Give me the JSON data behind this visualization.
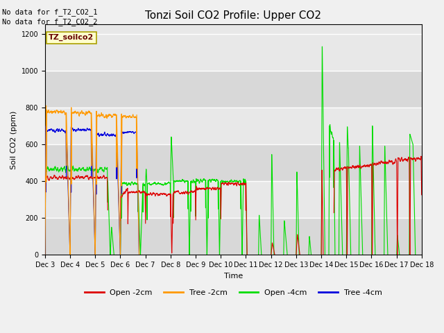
{
  "title": "Tonzi Soil CO2 Profile: Upper CO2",
  "ylabel": "Soil CO2 (ppm)",
  "xlabel": "Time",
  "no_data_text": [
    "No data for f_T2_CO2_1",
    "No data for f_T2_CO2_2"
  ],
  "legend_label": "TZ_soilco2",
  "ylim": [
    0,
    1250
  ],
  "yticks": [
    0,
    200,
    400,
    600,
    800,
    1000,
    1200
  ],
  "x_tick_labels": [
    "Dec 3",
    "Dec 4",
    "Dec 5",
    "Dec 6",
    "Dec 7",
    "Dec 8",
    "Dec 9",
    "Dec 10",
    "Dec 11",
    "Dec 12",
    "Dec 13",
    "Dec 14",
    "Dec 15",
    "Dec 16",
    "Dec 17",
    "Dec 18"
  ],
  "bg_color": "#e8e8e8",
  "colors": {
    "open_2cm": "#dd0000",
    "tree_2cm": "#ff9900",
    "open_4cm": "#00dd00",
    "tree_4cm": "#0000dd"
  },
  "legend_entries": [
    {
      "label": "Open -2cm",
      "color": "#dd0000"
    },
    {
      "label": "Tree -2cm",
      "color": "#ff9900"
    },
    {
      "label": "Open -4cm",
      "color": "#00dd00"
    },
    {
      "label": "Tree -4cm",
      "color": "#0000dd"
    }
  ]
}
